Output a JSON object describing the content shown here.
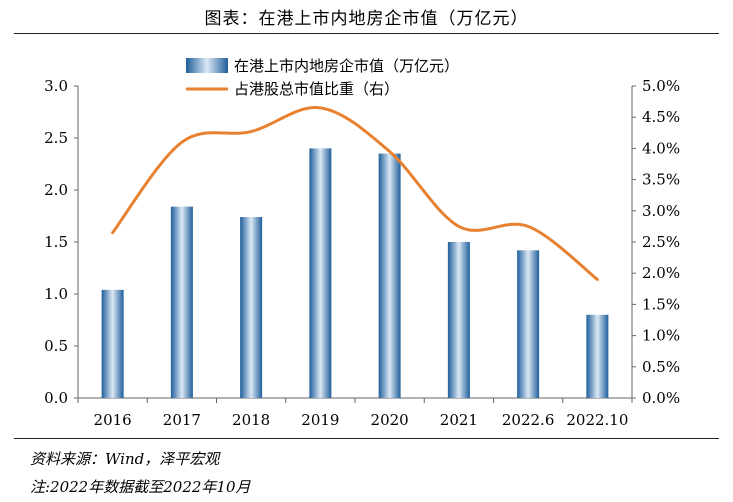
{
  "header": {
    "title": "图表：在港上市内地房企市值（万亿元）"
  },
  "chart_data": {
    "type": "bar",
    "categories": [
      "2016",
      "2017",
      "2018",
      "2019",
      "2020",
      "2021",
      "2022.6",
      "2022.10"
    ],
    "series": [
      {
        "name": "在港上市内地房企市值（万亿元）",
        "type": "bar",
        "axis": "left",
        "values": [
          1.04,
          1.84,
          1.74,
          2.4,
          2.35,
          1.5,
          1.42,
          0.8
        ]
      },
      {
        "name": "占港股总市值比重（右）",
        "type": "line",
        "axis": "right",
        "values": [
          2.65,
          4.1,
          4.27,
          4.65,
          3.95,
          2.75,
          2.75,
          1.9
        ]
      }
    ],
    "ylim": [
      0,
      3.0
    ],
    "yticks": [
      "0.0",
      "0.5",
      "1.0",
      "1.5",
      "2.0",
      "2.5",
      "3.0"
    ],
    "y2lim": [
      0,
      5.0
    ],
    "y2ticks": [
      "0.0%",
      "0.5%",
      "1.0%",
      "1.5%",
      "2.0%",
      "2.5%",
      "3.0%",
      "3.5%",
      "4.0%",
      "4.5%",
      "5.0%"
    ],
    "legend_position": "top",
    "colors": {
      "bar": "#3a78b4",
      "line": "#e8812f"
    }
  },
  "footer": {
    "source": "资料来源：Wind，泽平宏观",
    "note": "注:2022年数据截至2022年10月"
  }
}
